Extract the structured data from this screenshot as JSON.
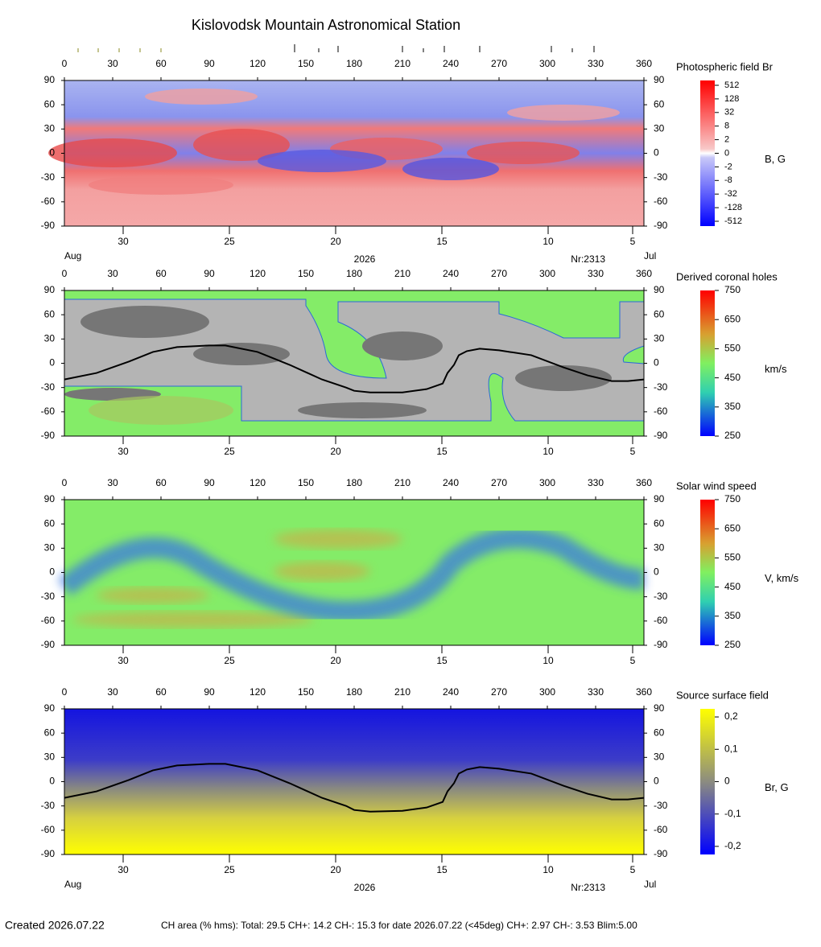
{
  "title": "Kislovodsk Mountain Astronomical Station",
  "footer": {
    "created": "Created  2026.07.22",
    "ch_area": "CH area (% hms): Total: 29.5 CH+: 14.2   CH-: 15.3 for date 2026.07.22 (<45deg) CH+: 2.97    CH-: 3.53 Blim:5.00"
  },
  "chart_data": [
    {
      "type": "heatmap",
      "title": "Photospheric field Br",
      "xlim": [
        0,
        360
      ],
      "ylim": [
        -90,
        90
      ],
      "xticks": [
        0,
        30,
        60,
        90,
        120,
        150,
        180,
        210,
        240,
        270,
        300,
        330,
        360
      ],
      "yticks": [
        90,
        60,
        30,
        0,
        -30,
        -60,
        -90
      ],
      "date_ticks": [
        {
          "value": 36.5,
          "label": "30"
        },
        {
          "value": 102.5,
          "label": "25"
        },
        {
          "value": 168.5,
          "label": "20"
        },
        {
          "value": 234.5,
          "label": "15"
        },
        {
          "value": 300.5,
          "label": "10"
        },
        {
          "value": 353,
          "label": "5"
        }
      ],
      "month_left": "Aug",
      "year": "2026",
      "rotation": "Nr:2313",
      "month_right": "Jul",
      "colorbar": {
        "unit": "B, G",
        "ticks": [
          512,
          128,
          32,
          8,
          2,
          0,
          -2,
          -8,
          -32,
          -128,
          -512
        ]
      }
    },
    {
      "type": "heatmap",
      "title": "Derived coronal holes",
      "xlim": [
        0,
        360
      ],
      "ylim": [
        -90,
        90
      ],
      "xticks": [
        0,
        30,
        60,
        90,
        120,
        150,
        180,
        210,
        240,
        270,
        300,
        330,
        360
      ],
      "yticks": [
        90,
        60,
        30,
        0,
        -30,
        -60,
        -90
      ],
      "date_ticks": [
        {
          "value": 36.5,
          "label": "30"
        },
        {
          "value": 102.5,
          "label": "25"
        },
        {
          "value": 168.5,
          "label": "20"
        },
        {
          "value": 234.5,
          "label": "15"
        },
        {
          "value": 300.5,
          "label": "10"
        },
        {
          "value": 353,
          "label": "5"
        }
      ],
      "neutral_line": {
        "color": "#000000",
        "x": [
          0,
          20,
          40,
          55,
          70,
          90,
          100,
          120,
          140,
          160,
          175,
          180,
          190,
          210,
          225,
          235,
          238,
          242,
          245,
          250,
          258,
          270,
          290,
          310,
          325,
          340,
          350,
          360
        ],
        "y": [
          -20,
          -12,
          2,
          14,
          20,
          22,
          22,
          14,
          -2,
          -20,
          -30,
          -34,
          -36,
          -36,
          -32,
          -25,
          -12,
          -2,
          10,
          15,
          18,
          16,
          10,
          -5,
          -15,
          -22,
          -22,
          -20
        ]
      },
      "colorbar": {
        "unit": "km/s",
        "lim": [
          250,
          750
        ],
        "ticks": [
          750,
          650,
          550,
          450,
          350,
          250
        ]
      }
    },
    {
      "type": "heatmap",
      "title": "Solar wind speed",
      "xlim": [
        0,
        360
      ],
      "ylim": [
        -90,
        90
      ],
      "xticks": [
        0,
        30,
        60,
        90,
        120,
        150,
        180,
        210,
        240,
        270,
        300,
        330,
        360
      ],
      "yticks": [
        90,
        60,
        30,
        0,
        -30,
        -60,
        -90
      ],
      "date_ticks": [
        {
          "value": 36.5,
          "label": "30"
        },
        {
          "value": 102.5,
          "label": "25"
        },
        {
          "value": 168.5,
          "label": "20"
        },
        {
          "value": 234.5,
          "label": "15"
        },
        {
          "value": 300.5,
          "label": "10"
        },
        {
          "value": 353,
          "label": "5"
        }
      ],
      "colorbar": {
        "unit": "V, km/s",
        "lim": [
          250,
          750
        ],
        "ticks": [
          750,
          650,
          550,
          450,
          350,
          250
        ]
      }
    },
    {
      "type": "heatmap",
      "title": "Source surface field",
      "xlim": [
        0,
        360
      ],
      "ylim": [
        -90,
        90
      ],
      "xticks": [
        0,
        30,
        60,
        90,
        120,
        150,
        180,
        210,
        240,
        270,
        300,
        330,
        360
      ],
      "yticks": [
        90,
        60,
        30,
        0,
        -30,
        -60,
        -90
      ],
      "date_ticks": [
        {
          "value": 36.5,
          "label": "30"
        },
        {
          "value": 102.5,
          "label": "25"
        },
        {
          "value": 168.5,
          "label": "20"
        },
        {
          "value": 234.5,
          "label": "15"
        },
        {
          "value": 300.5,
          "label": "10"
        },
        {
          "value": 353,
          "label": "5"
        }
      ],
      "month_left": "Aug",
      "year": "2026",
      "rotation": "Nr:2313",
      "month_right": "Jul",
      "neutral_line": {
        "color": "#000000",
        "x": [
          0,
          20,
          40,
          55,
          70,
          90,
          100,
          120,
          140,
          160,
          175,
          180,
          190,
          210,
          225,
          235,
          238,
          242,
          245,
          250,
          258,
          270,
          290,
          310,
          325,
          340,
          350,
          360
        ],
        "y": [
          -20,
          -12,
          2,
          14,
          20,
          22,
          22,
          14,
          -2,
          -20,
          -30,
          -35,
          -37,
          -36,
          -32,
          -25,
          -12,
          -2,
          10,
          15,
          18,
          16,
          10,
          -5,
          -15,
          -22,
          -22,
          -20
        ]
      },
      "colorbar": {
        "unit": "Br, G",
        "lim": [
          -0.225,
          0.225
        ],
        "ticks": [
          {
            "value": 0.2,
            "label": "0,2"
          },
          {
            "value": 0.1,
            "label": "0,1"
          },
          0,
          {
            "value": -0.1,
            "label": "-0,1"
          },
          {
            "value": -0.2,
            "label": "-0,2"
          }
        ]
      }
    }
  ]
}
